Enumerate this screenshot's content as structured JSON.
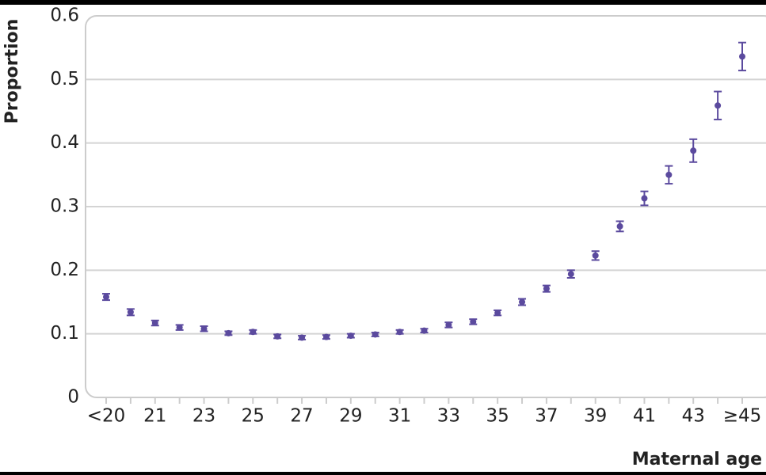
{
  "chart_data": {
    "type": "errorbar",
    "x_label": "Maternal age",
    "y_label": "Proportion",
    "categories": [
      "<20",
      null,
      "21",
      null,
      "23",
      null,
      "25",
      null,
      "27",
      null,
      "29",
      null,
      "31",
      null,
      "33",
      null,
      "35",
      null,
      "37",
      null,
      "39",
      null,
      "41",
      null,
      "43",
      null,
      "≥45"
    ],
    "values": [
      0.158,
      0.134,
      0.117,
      0.11,
      0.108,
      0.101,
      0.103,
      0.096,
      0.094,
      0.095,
      0.097,
      0.099,
      0.103,
      0.105,
      0.114,
      0.119,
      0.133,
      0.15,
      0.171,
      0.194,
      0.223,
      0.269,
      0.313,
      0.35,
      0.388,
      0.459,
      0.536
    ],
    "errors": [
      0.005,
      0.005,
      0.004,
      0.004,
      0.004,
      0.003,
      0.003,
      0.003,
      0.003,
      0.003,
      0.003,
      0.003,
      0.003,
      0.003,
      0.004,
      0.004,
      0.004,
      0.005,
      0.005,
      0.006,
      0.007,
      0.008,
      0.011,
      0.014,
      0.018,
      0.022,
      0.022
    ],
    "color": "#5b4a9e",
    "ylim": [
      0,
      0.6
    ],
    "yticks": [
      0,
      0.1,
      0.2,
      0.3,
      0.4,
      0.5,
      0.6
    ],
    "grid": true
  }
}
